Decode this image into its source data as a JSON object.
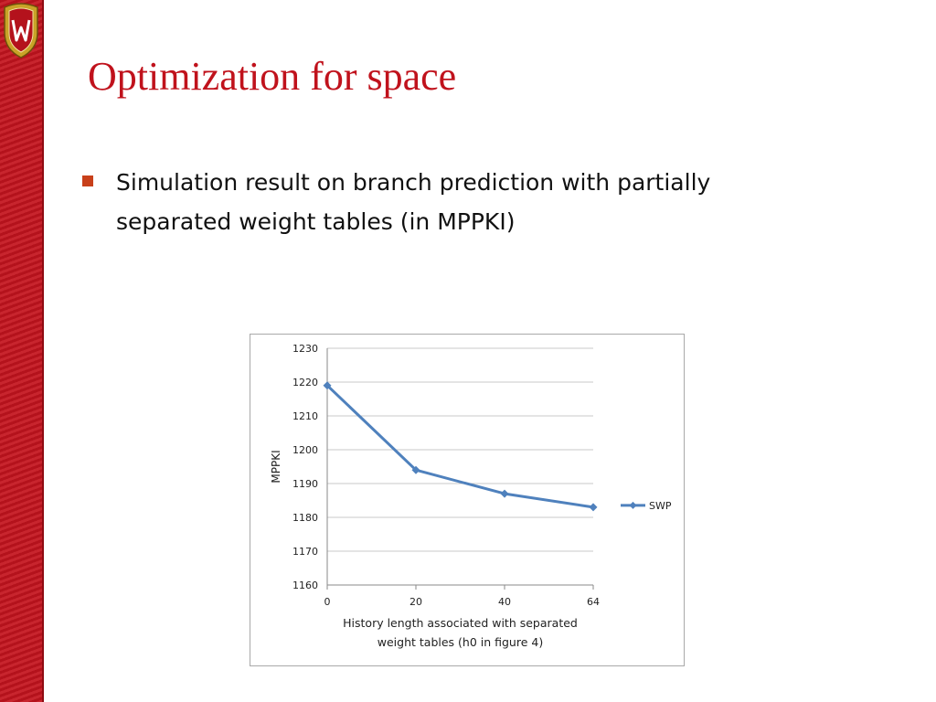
{
  "slide": {
    "title": "Optimization for space",
    "bullets": [
      "Simulation result on branch prediction with partially separated weight tables (in MPPKI)"
    ]
  },
  "colors": {
    "accent": "#c0121c",
    "band": "#b4121c",
    "bullet": "#c8401a",
    "series": "#4f81bd"
  },
  "chart_data": {
    "type": "line",
    "categories": [
      "0",
      "20",
      "40",
      "64"
    ],
    "series": [
      {
        "name": "SWP",
        "values": [
          1219,
          1194,
          1187,
          1183
        ]
      }
    ],
    "xlabel": "History length associated with separated weight tables (h0 in figure 4)",
    "ylabel": "MPPKI",
    "ylim": [
      1160,
      1230
    ],
    "yticks": [
      1160,
      1170,
      1180,
      1190,
      1200,
      1210,
      1220,
      1230
    ],
    "grid": true,
    "legend": "right"
  }
}
